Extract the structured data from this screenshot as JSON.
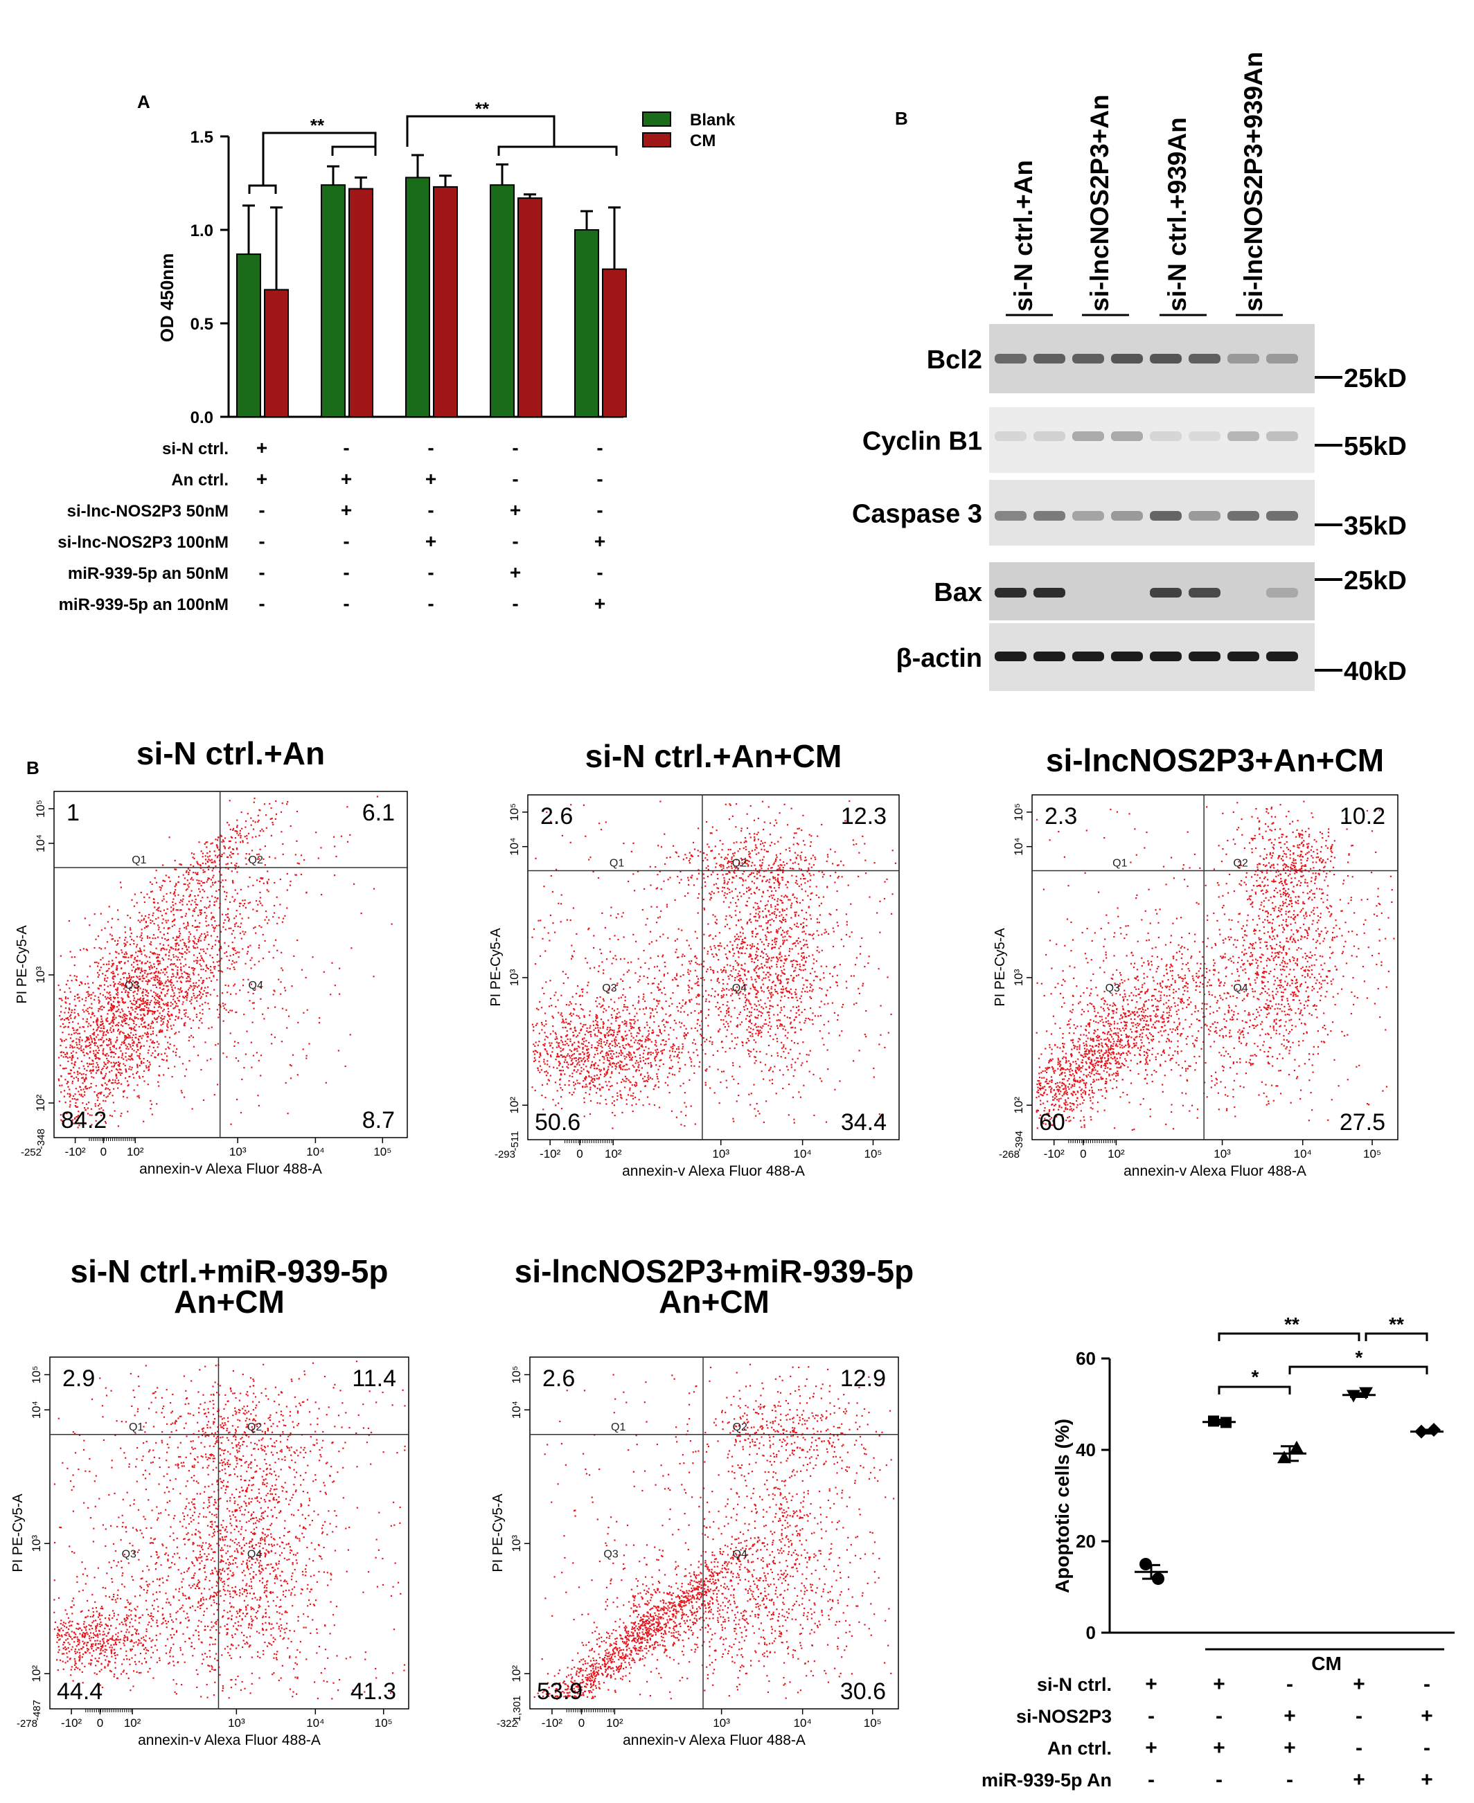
{
  "panel_a": {
    "label": "A",
    "chart_data": {
      "type": "bar",
      "title": "",
      "xlabel": "",
      "ylabel": "OD 450nm",
      "ylim": [
        0,
        1.5
      ],
      "yticks": [
        "0.0",
        "0.5",
        "1.0",
        "1.5"
      ],
      "groups": 5,
      "series": [
        {
          "name": "Blank",
          "color": "#1a6b1a",
          "values": [
            0.87,
            1.24,
            1.28,
            1.24,
            1.0
          ],
          "errors": [
            0.26,
            0.1,
            0.12,
            0.11,
            0.1
          ]
        },
        {
          "name": "CM",
          "color": "#a11616",
          "values": [
            0.68,
            1.22,
            1.23,
            1.17,
            0.79
          ],
          "errors": [
            0.44,
            0.06,
            0.06,
            0.02,
            0.33
          ]
        }
      ],
      "significance": [
        "**",
        "**"
      ],
      "legend": "top-right"
    },
    "conditions": [
      {
        "label": "si-N ctrl.",
        "marks": [
          "+",
          "-",
          "-",
          "-",
          "-"
        ]
      },
      {
        "label": "An ctrl.",
        "marks": [
          "+",
          "+",
          "+",
          "-",
          "-"
        ]
      },
      {
        "label": "si-lnc-NOS2P3 50nM",
        "marks": [
          "-",
          "+",
          "-",
          "+",
          "-"
        ]
      },
      {
        "label": "si-lnc-NOS2P3 100nM",
        "marks": [
          "-",
          "-",
          "+",
          "-",
          "+"
        ]
      },
      {
        "label": "miR-939-5p an 50nM",
        "marks": [
          "-",
          "-",
          "-",
          "+",
          "-"
        ]
      },
      {
        "label": "miR-939-5p an 100nM",
        "marks": [
          "-",
          "-",
          "-",
          "-",
          "+"
        ]
      }
    ]
  },
  "panel_b_blot": {
    "label": "B",
    "lanes": [
      "si-N ctrl.+An",
      "si-lncNOS2P3+An",
      "si-N ctrl.+939An",
      "si-lncNOS2P3+939An"
    ],
    "proteins": [
      {
        "name": "Bcl2",
        "size": "25kD"
      },
      {
        "name": "Cyclin B1",
        "size": "55kD"
      },
      {
        "name": "Caspase 3",
        "size": "35kD"
      },
      {
        "name": "Bax",
        "size": "25kD"
      },
      {
        "name": "β-actin",
        "size": "40kD"
      }
    ]
  },
  "panel_b_flow": {
    "label": "B",
    "xlabel": "annexin-v Alexa Fluor 488-A",
    "ylabel": "PI PE-Cy5-A",
    "quadrants": [
      "Q1",
      "Q2",
      "Q3",
      "Q4"
    ],
    "xticks": [
      "-10²",
      "0",
      "10²",
      "10³",
      "10⁴",
      "10⁵"
    ],
    "yticks": [
      "10²",
      "10³",
      "10⁴",
      "10⁵"
    ],
    "plots": [
      {
        "title": [
          "si-N ctrl.+An"
        ],
        "q1": "1",
        "q2": "6.1",
        "q3": "84.2",
        "q4": "8.7",
        "xmin": "-252",
        "ymin": "-348"
      },
      {
        "title": [
          "si-N ctrl.+An+CM"
        ],
        "q1": "2.6",
        "q2": "12.3",
        "q3": "50.6",
        "q4": "34.4",
        "xmin": "-293",
        "ymin": "-511"
      },
      {
        "title": [
          "si-lncNOS2P3+An+CM"
        ],
        "q1": "2.3",
        "q2": "10.2",
        "q3": "60",
        "q4": "27.5",
        "xmin": "-268",
        "ymin": "-394"
      },
      {
        "title": [
          "si-N ctrl.+miR-939-5p",
          "An+CM"
        ],
        "q1": "2.9",
        "q2": "11.4",
        "q3": "44.4",
        "q4": "41.3",
        "xmin": "-278",
        "ymin": "-487"
      },
      {
        "title": [
          "si-lncNOS2P3+miR-939-5p",
          "An+CM"
        ],
        "q1": "2.6",
        "q2": "12.9",
        "q3": "53.9",
        "q4": "30.6",
        "xmin": "-322",
        "ymin": "-1,301"
      }
    ]
  },
  "panel_apoptosis": {
    "chart_data": {
      "type": "scatter",
      "ylabel": "Apoptotic cells (%)",
      "ylim": [
        0,
        60
      ],
      "yticks": [
        "0",
        "20",
        "40",
        "60"
      ],
      "groups": [
        {
          "mean": 13.3,
          "err": 1.5,
          "points": [
            15.0,
            11.8
          ],
          "marker": "circle"
        },
        {
          "mean": 46.1,
          "err": 0.5,
          "points": [
            46.3,
            46.0
          ],
          "marker": "square"
        },
        {
          "mean": 39.2,
          "err": 1.6,
          "points": [
            38.3,
            40.5
          ],
          "marker": "triangle-up"
        },
        {
          "mean": 52.0,
          "err": 0.4,
          "points": [
            51.9,
            52.5
          ],
          "marker": "triangle-down"
        },
        {
          "mean": 44.0,
          "err": 0.4,
          "points": [
            44.0,
            44.4
          ],
          "marker": "diamond"
        }
      ],
      "significance": [
        "**",
        "**",
        "*",
        "*"
      ],
      "cm_label": "CM"
    },
    "conditions": [
      {
        "label": "si-N ctrl.",
        "marks": [
          "+",
          "+",
          "-",
          "+",
          "-"
        ]
      },
      {
        "label": "si-NOS2P3",
        "marks": [
          "-",
          "-",
          "+",
          "-",
          "+"
        ]
      },
      {
        "label": "An ctrl.",
        "marks": [
          "+",
          "+",
          "+",
          "-",
          "-"
        ]
      },
      {
        "label": "miR-939-5p An",
        "marks": [
          "-",
          "-",
          "-",
          "+",
          "+"
        ]
      }
    ]
  }
}
